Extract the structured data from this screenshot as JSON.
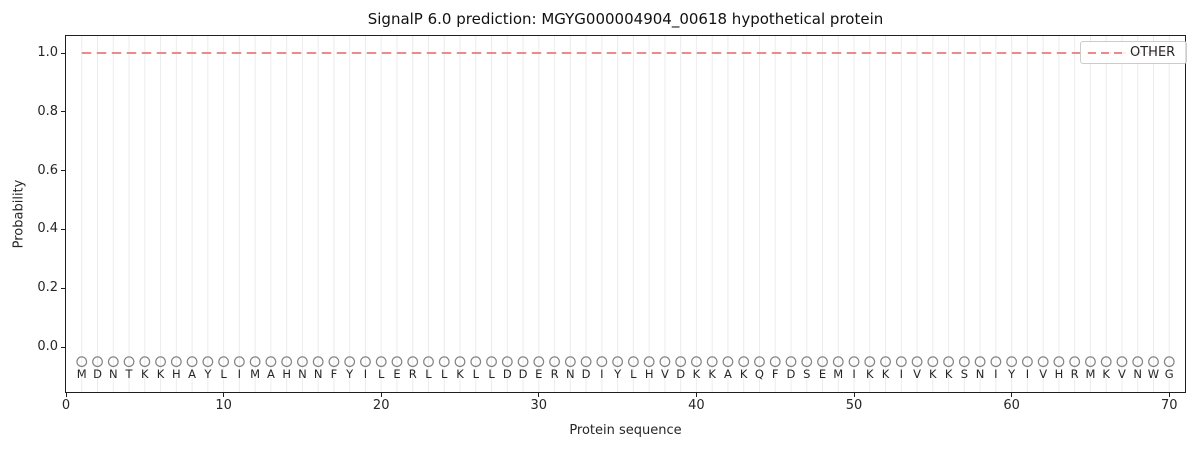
{
  "chart_data": {
    "type": "line",
    "title": "SignalP 6.0 prediction: MGYG000004904_00618 hypothetical protein",
    "xlabel": "Protein sequence",
    "ylabel": "Probability",
    "xlim": [
      0,
      71
    ],
    "ylim": [
      -0.15,
      1.06
    ],
    "xticks": [
      0,
      10,
      20,
      30,
      40,
      50,
      60,
      70
    ],
    "ytick_labels": [
      "0.0",
      "0.2",
      "0.4",
      "0.6",
      "0.8",
      "1.0"
    ],
    "grid": {
      "vertical_per_residue": true,
      "horizontal": false
    },
    "legend": {
      "position": "upper right",
      "entries": [
        {
          "label": "OTHER",
          "line_style": "dashed",
          "color": "#e87c7c"
        }
      ]
    },
    "series": [
      {
        "name": "OTHER",
        "line_style": "dashed",
        "color": "#e87c7c",
        "x_start": 1,
        "x_end": 70,
        "values": [
          1.0,
          1.0,
          1.0,
          1.0,
          1.0,
          1.0,
          1.0,
          1.0,
          1.0,
          1.0,
          1.0,
          1.0,
          1.0,
          1.0,
          1.0,
          1.0,
          1.0,
          1.0,
          1.0,
          1.0,
          1.0,
          1.0,
          1.0,
          1.0,
          1.0,
          1.0,
          1.0,
          1.0,
          1.0,
          1.0,
          1.0,
          1.0,
          1.0,
          1.0,
          1.0,
          1.0,
          1.0,
          1.0,
          1.0,
          1.0,
          1.0,
          1.0,
          1.0,
          1.0,
          1.0,
          1.0,
          1.0,
          1.0,
          1.0,
          1.0,
          1.0,
          1.0,
          1.0,
          1.0,
          1.0,
          1.0,
          1.0,
          1.0,
          1.0,
          1.0,
          1.0,
          1.0,
          1.0,
          1.0,
          1.0,
          1.0,
          1.0,
          1.0,
          1.0,
          1.0
        ]
      }
    ],
    "residues": {
      "sequence": "MDNTKKHAYLIMAHNNFYILERLLKLLDDERNDIYLHVDKKAKQFDSEMIKKIVKKSNIYIVHRMKVNWG",
      "length": 70,
      "marker_y": -0.05,
      "marker_style": "open-circle"
    },
    "colors": {
      "other_line": "#e87c7c",
      "grid": "#ececec",
      "marker_outline": "#848484",
      "text": "#262626",
      "spine": "#1f1f1f",
      "legend_border": "#cccccc"
    }
  }
}
